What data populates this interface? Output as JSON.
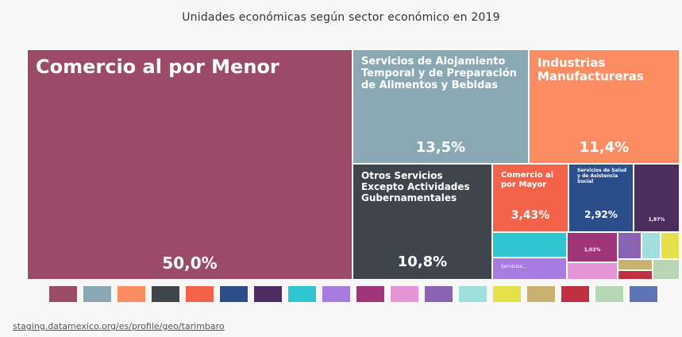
{
  "title": "Unidades económicas según sector económico en 2019",
  "source_link": "staging.datamexico.org/es/profile/geo/tarimbaro",
  "chart_data": {
    "type": "treemap",
    "title": "Unidades económicas según sector económico en 2019",
    "unit": "%",
    "items": [
      {
        "label": "Comercio al por Menor",
        "value": 50.0,
        "display": "50,0%",
        "color": "#9b4a67"
      },
      {
        "label": "Servicios de Alojamiento Temporal y de Preparación de Alimentos y Bebidas",
        "value": 13.5,
        "display": "13,5%",
        "color": "#89a8b3"
      },
      {
        "label": "Industrias Manufactureras",
        "value": 11.4,
        "display": "11,4%",
        "color": "#fc8d62"
      },
      {
        "label": "Otros Servicios Excepto Actividades Gubernamentales",
        "value": 10.8,
        "display": "10,8%",
        "color": "#3e454c"
      },
      {
        "label": "Comercio al por Mayor",
        "value": 3.43,
        "display": "3,43%",
        "color": "#f2634a"
      },
      {
        "label": "Servicios de Salud y de Asistencia Social",
        "value": 2.92,
        "display": "2,92%",
        "color": "#2c4f8c"
      },
      {
        "label": "",
        "value": 1.87,
        "display": "1,87%",
        "color": "#4b2d5f"
      },
      {
        "label": "",
        "value": 1.6,
        "display": "",
        "color": "#2fc6d1"
      },
      {
        "label": "Servicios...",
        "value": 1.2,
        "display": "",
        "color": "#a77be0"
      },
      {
        "label": "",
        "value": 1.02,
        "display": "1,02%",
        "color": "#a0357a"
      },
      {
        "label": "",
        "value": 0.8,
        "display": "",
        "color": "#e594d6"
      },
      {
        "label": "",
        "value": 0.55,
        "display": "",
        "color": "#8b63b5"
      },
      {
        "label": "",
        "value": 0.4,
        "display": "",
        "color": "#9fe0de"
      },
      {
        "label": "",
        "value": 0.35,
        "display": "",
        "color": "#e6e04a"
      },
      {
        "label": "",
        "value": 0.25,
        "display": "",
        "color": "#c9b16f"
      },
      {
        "label": "",
        "value": 0.2,
        "display": "",
        "color": "#c03040"
      },
      {
        "label": "",
        "value": 0.18,
        "display": "",
        "color": "#b7d6b4"
      }
    ],
    "legend_colors": [
      "#9b4a67",
      "#89a8b3",
      "#fc8d62",
      "#3e454c",
      "#f2634a",
      "#2c4f8c",
      "#4b2d5f",
      "#2fc6d1",
      "#a77be0",
      "#a0357a",
      "#e594d6",
      "#8b63b5",
      "#9fe0de",
      "#e6e04a",
      "#c9b16f",
      "#c03040",
      "#b7d6b4",
      "#5f73b7"
    ]
  }
}
